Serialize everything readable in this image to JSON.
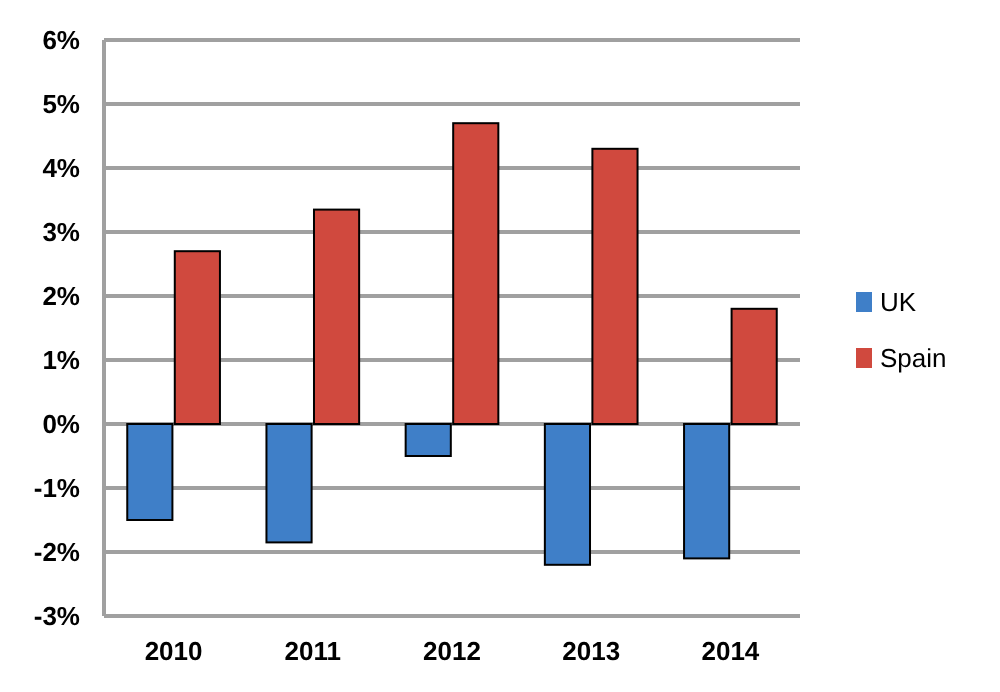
{
  "chart_data": {
    "type": "bar",
    "categories": [
      "2010",
      "2011",
      "2012",
      "2013",
      "2014"
    ],
    "series": [
      {
        "name": "UK",
        "color": "#3f7fc8",
        "values": [
          -1.5,
          -1.85,
          -0.5,
          -2.2,
          -2.1
        ]
      },
      {
        "name": "Spain",
        "color": "#d0493e",
        "values": [
          2.7,
          3.35,
          4.7,
          4.3,
          1.8
        ]
      }
    ],
    "ylim": [
      -3,
      6
    ],
    "yticks": [
      {
        "value": -3,
        "label": "-3%"
      },
      {
        "value": -2,
        "label": "-2%"
      },
      {
        "value": -1,
        "label": "-1%"
      },
      {
        "value": 0,
        "label": "0%"
      },
      {
        "value": 1,
        "label": "1%"
      },
      {
        "value": 2,
        "label": "2%"
      },
      {
        "value": 3,
        "label": "3%"
      },
      {
        "value": 4,
        "label": "4%"
      },
      {
        "value": 5,
        "label": "5%"
      },
      {
        "value": 6,
        "label": "6%"
      }
    ],
    "grid": "y",
    "legend": "right"
  }
}
